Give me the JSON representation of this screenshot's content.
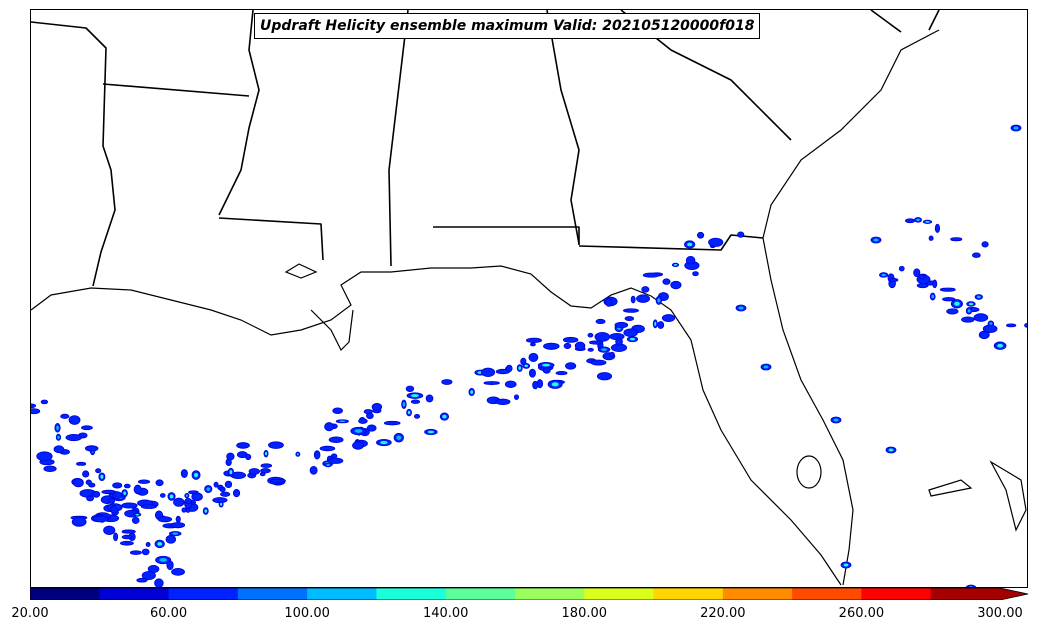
{
  "title": "Updraft Helicity ensemble maximum Valid: 202105120000f018",
  "colorbar": {
    "min": 20,
    "max": 300,
    "extend": "max",
    "colors": [
      "#00007f",
      "#0000d4",
      "#0022ff",
      "#0070ff",
      "#00bcff",
      "#1cffdb",
      "#5dff9a",
      "#9aff5d",
      "#dbff1c",
      "#ffd400",
      "#ff8c00",
      "#ff4a00",
      "#ff0000",
      "#a50000"
    ],
    "tick_labels": [
      "20.00",
      "60.00",
      "100.00",
      "140.00",
      "180.00",
      "220.00",
      "260.00",
      "300.00"
    ]
  },
  "legend": {
    "swatch_colors": [
      "#0000d4",
      "#0022ff",
      "#00bcff",
      "#1cffdb"
    ]
  }
}
